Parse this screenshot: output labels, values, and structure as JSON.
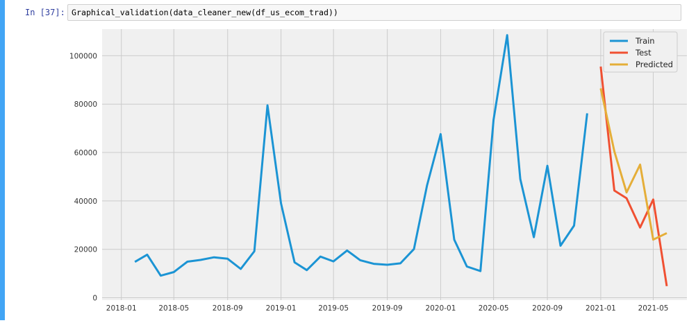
{
  "cell": {
    "prompt": "In [37]:",
    "code": "Graphical_validation(data_cleaner_new(df_us_ecom_trad))"
  },
  "colors": {
    "cell_bar": "#42a5f5",
    "plot_background": "#f0f0f0",
    "grid": "#cbcbcb",
    "train": "#1b94d4",
    "test": "#f05032",
    "predicted": "#e5ae38"
  },
  "chart_data": {
    "type": "line",
    "style": "fivethirtyeight",
    "title": "",
    "xlabel": "",
    "ylabel": "",
    "grid": true,
    "legend_position": "top-right",
    "xlim": [
      "2017-11-18",
      "2021-07-17"
    ],
    "ylim": [
      -1000,
      111000
    ],
    "x_ticks": [
      "2018-01",
      "2018-05",
      "2018-09",
      "2019-01",
      "2019-05",
      "2019-09",
      "2020-01",
      "2020-05",
      "2020-09",
      "2021-01",
      "2021-05"
    ],
    "y_ticks": [
      0,
      20000,
      40000,
      60000,
      80000,
      100000
    ],
    "legend": [
      "Train",
      "Test",
      "Predicted"
    ],
    "series": [
      {
        "name": "Train",
        "color": "#1b94d4",
        "x": [
          "2018-02-01",
          "2018-03-01",
          "2018-04-01",
          "2018-05-01",
          "2018-06-01",
          "2018-07-01",
          "2018-08-01",
          "2018-09-01",
          "2018-10-01",
          "2018-11-01",
          "2018-12-01",
          "2019-01-01",
          "2019-02-01",
          "2019-03-01",
          "2019-04-01",
          "2019-05-01",
          "2019-06-01",
          "2019-07-01",
          "2019-08-01",
          "2019-09-01",
          "2019-10-01",
          "2019-11-01",
          "2019-12-01",
          "2020-01-01",
          "2020-02-01",
          "2020-03-01",
          "2020-04-01",
          "2020-05-01",
          "2020-06-01",
          "2020-07-01",
          "2020-08-01",
          "2020-09-01",
          "2020-10-01",
          "2020-11-01",
          "2020-12-01"
        ],
        "y": [
          14800,
          17800,
          9100,
          10600,
          14900,
          15600,
          16700,
          16100,
          11900,
          19200,
          79500,
          39000,
          14600,
          11400,
          17000,
          15000,
          19500,
          15500,
          14000,
          13600,
          14200,
          20100,
          46500,
          67600,
          24000,
          12900,
          11000,
          73500,
          108500,
          49000,
          25000,
          54500,
          21500,
          29800,
          76200
        ]
      },
      {
        "name": "Test",
        "color": "#f05032",
        "x": [
          "2021-01-01",
          "2021-02-01",
          "2021-03-01",
          "2021-04-01",
          "2021-05-01",
          "2021-06-01"
        ],
        "y": [
          95500,
          44300,
          41100,
          29000,
          40600,
          4800
        ]
      },
      {
        "name": "Predicted",
        "color": "#e5ae38",
        "x": [
          "2021-01-01",
          "2021-02-01",
          "2021-03-01",
          "2021-04-01",
          "2021-05-01",
          "2021-06-01"
        ],
        "y": [
          86500,
          60500,
          43500,
          55000,
          24000,
          26700
        ]
      }
    ]
  }
}
